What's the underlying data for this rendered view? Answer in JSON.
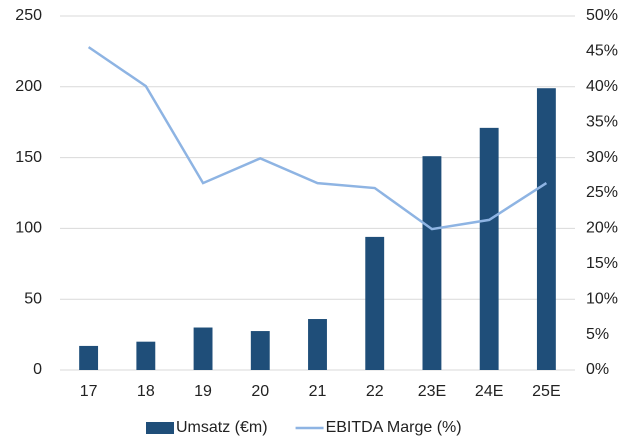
{
  "chart_data": {
    "type": "bar_line",
    "categories": [
      "17",
      "18",
      "19",
      "20",
      "21",
      "22",
      "23E",
      "24E",
      "25E"
    ],
    "series": [
      {
        "name": "Umsatz (€m)",
        "type": "bar",
        "color": "#1f4e79",
        "values": [
          17,
          20,
          30,
          27.5,
          36,
          94,
          151,
          171,
          199
        ]
      },
      {
        "name": "EBITDA Marge (%)",
        "type": "line",
        "axis": "y2",
        "color": "#8eb4e3",
        "values": [
          45.6,
          40.1,
          26.4,
          29.9,
          26.4,
          25.7,
          19.9,
          21.2,
          26.4
        ]
      }
    ],
    "ylim": [
      0,
      250
    ],
    "yticks": [
      0,
      50,
      100,
      150,
      200,
      250
    ],
    "y2lim": [
      0,
      50
    ],
    "y2ticks": [
      {
        "value": 0,
        "label": "0%"
      },
      {
        "value": 5,
        "label": "5%"
      },
      {
        "value": 10,
        "label": "10%"
      },
      {
        "value": 15,
        "label": "15%"
      },
      {
        "value": 20,
        "label": "20%"
      },
      {
        "value": 25,
        "label": "25%"
      },
      {
        "value": 30,
        "label": "30%"
      },
      {
        "value": 35,
        "label": "35%"
      },
      {
        "value": 40,
        "label": "40%"
      },
      {
        "value": 45,
        "label": "45%"
      },
      {
        "value": 50,
        "label": "50%"
      }
    ],
    "grid": true,
    "legend": "bottom"
  }
}
